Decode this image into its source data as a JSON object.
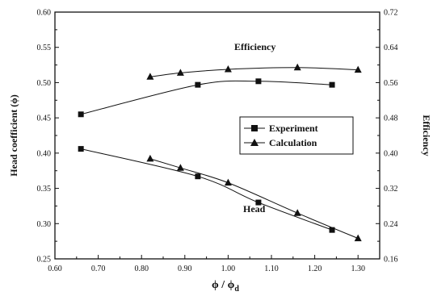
{
  "chart_data": {
    "type": "line",
    "xlabel_main": "ϕ / ϕ",
    "xlabel_sub": "d",
    "ylabel_left": "Head coefficient (ϕ)",
    "ylabel_right": "Efficiency",
    "xlim": [
      0.6,
      1.35
    ],
    "ylim_left": [
      0.25,
      0.6
    ],
    "ylim_right": [
      0.16,
      0.72
    ],
    "x_ticks": [
      "0.60",
      "0.70",
      "0.80",
      "0.90",
      "1.00",
      "1.10",
      "1.20",
      "1.30"
    ],
    "y_left_ticks": [
      "0.25",
      "0.30",
      "0.35",
      "0.40",
      "0.45",
      "0.50",
      "0.55",
      "0.60"
    ],
    "y_right_ticks": [
      "0.16",
      "0.24",
      "0.32",
      "0.40",
      "0.48",
      "0.56",
      "0.64",
      "0.72"
    ],
    "grid": false,
    "legend_position": "center-right",
    "legend": [
      {
        "label": "Experiment",
        "marker": "square"
      },
      {
        "label": "Calculation",
        "marker": "triangle"
      }
    ],
    "annotations": {
      "efficiency": "Efficiency",
      "head": "Head"
    },
    "series": [
      {
        "name": "Experiment",
        "curve": "Head",
        "axis": "left",
        "marker": "square",
        "x": [
          0.66,
          0.93,
          1.07,
          1.24
        ],
        "values": [
          0.406,
          0.367,
          0.33,
          0.291
        ]
      },
      {
        "name": "Calculation",
        "curve": "Head",
        "axis": "left",
        "marker": "triangle",
        "x": [
          0.82,
          0.89,
          1.0,
          1.16,
          1.3
        ],
        "values": [
          0.392,
          0.379,
          0.358,
          0.315,
          0.279
        ]
      },
      {
        "name": "Experiment",
        "curve": "Efficiency",
        "axis": "right",
        "marker": "square",
        "x": [
          0.66,
          0.93,
          1.07,
          1.24
        ],
        "values": [
          0.488,
          0.555,
          0.563,
          0.555
        ]
      },
      {
        "name": "Calculation",
        "curve": "Efficiency",
        "axis": "right",
        "marker": "triangle",
        "x": [
          0.82,
          0.89,
          1.0,
          1.16,
          1.3
        ],
        "values": [
          0.573,
          0.582,
          0.59,
          0.594,
          0.589
        ]
      }
    ]
  }
}
